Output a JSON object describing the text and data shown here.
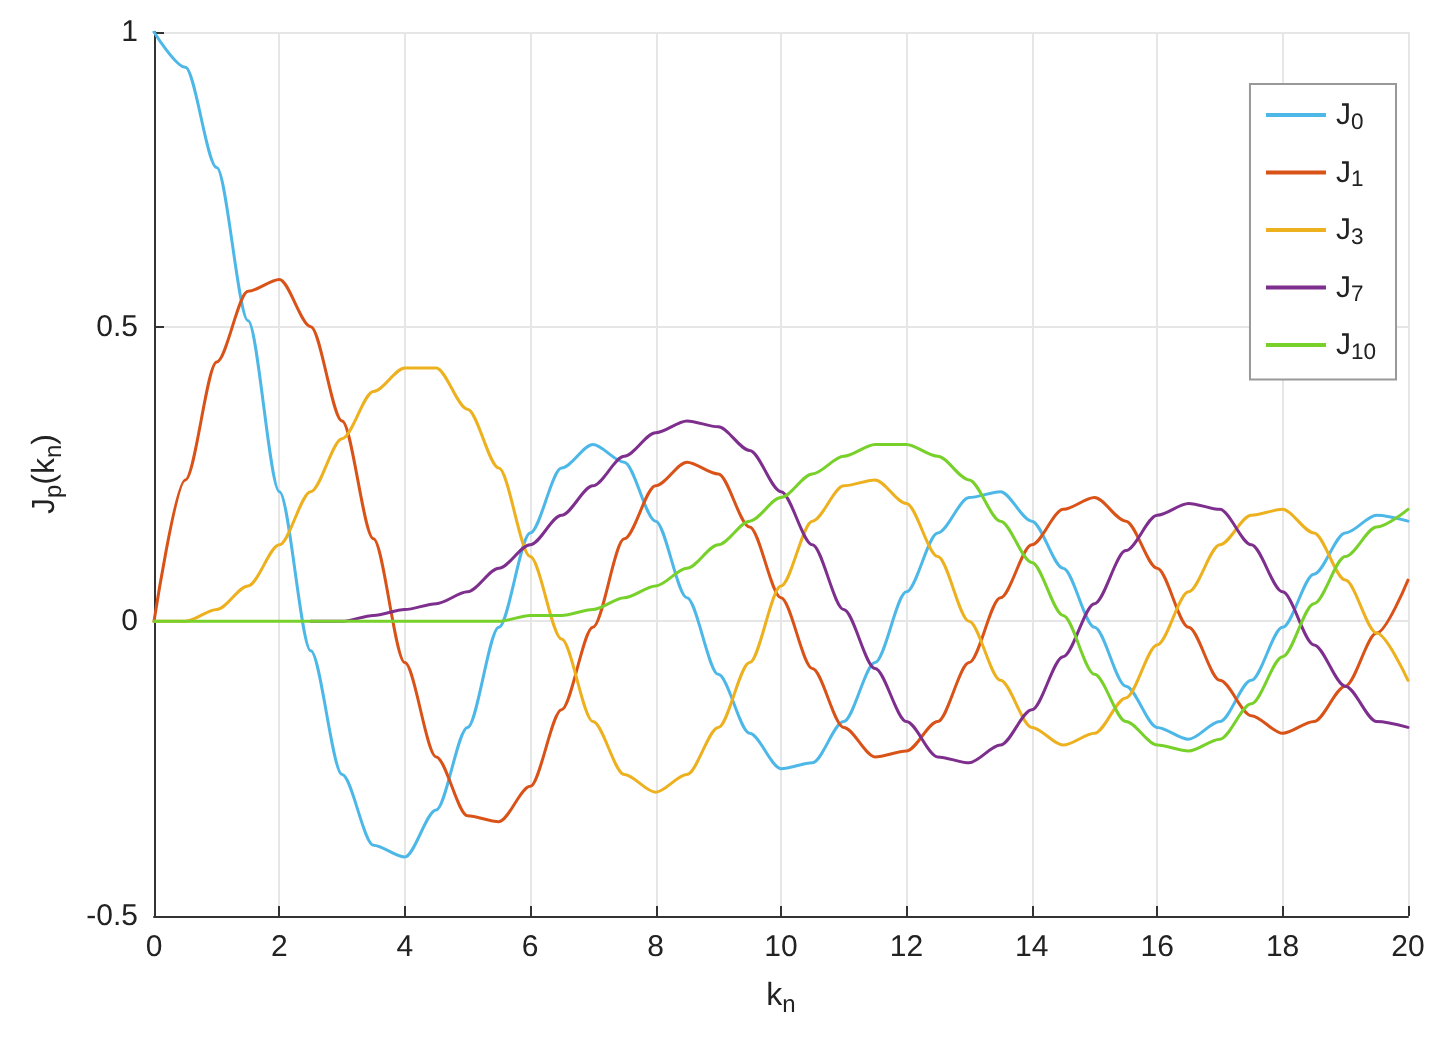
{
  "chart_data": {
    "type": "line",
    "xlabel": "k$_{n}$",
    "ylabel": "J$_{p}$(k$_{n}$)",
    "x": [
      0,
      0.5,
      1,
      1.5,
      2,
      2.5,
      3,
      3.5,
      4,
      4.5,
      5,
      5.5,
      6,
      6.5,
      7,
      7.5,
      8,
      8.5,
      9,
      9.5,
      10,
      10.5,
      11,
      11.5,
      12,
      12.5,
      13,
      13.5,
      14,
      14.5,
      15,
      15.5,
      16,
      16.5,
      17,
      17.5,
      18,
      18.5,
      19,
      19.5,
      20
    ],
    "series": [
      {
        "name": "J$_{0}$",
        "color": "#4db8e8",
        "values": [
          1,
          0.94,
          0.77,
          0.51,
          0.22,
          -0.05,
          -0.26,
          -0.38,
          -0.4,
          -0.32,
          -0.18,
          -0.01,
          0.15,
          0.26,
          0.3,
          0.27,
          0.17,
          0.04,
          -0.09,
          -0.19,
          -0.25,
          -0.24,
          -0.17,
          -0.07,
          0.05,
          0.15,
          0.21,
          0.22,
          0.17,
          0.09,
          -0.01,
          -0.11,
          -0.18,
          -0.2,
          -0.17,
          -0.1,
          -0.01,
          0.08,
          0.15,
          0.18,
          0.17
        ]
      },
      {
        "name": "J$_{1}$",
        "color": "#d95319",
        "values": [
          0,
          0.24,
          0.44,
          0.56,
          0.58,
          0.5,
          0.34,
          0.14,
          -0.07,
          -0.23,
          -0.33,
          -0.34,
          -0.28,
          -0.15,
          -0.01,
          0.14,
          0.23,
          0.27,
          0.25,
          0.16,
          0.04,
          -0.08,
          -0.18,
          -0.23,
          -0.22,
          -0.17,
          -0.07,
          0.04,
          0.13,
          0.19,
          0.21,
          0.17,
          0.09,
          -0.01,
          -0.1,
          -0.16,
          -0.19,
          -0.17,
          -0.11,
          -0.02,
          0.07
        ]
      },
      {
        "name": "J$_{3}$",
        "color": "#edb120",
        "values": [
          0,
          0,
          0.02,
          0.06,
          0.13,
          0.22,
          0.31,
          0.39,
          0.43,
          0.43,
          0.36,
          0.26,
          0.11,
          -0.03,
          -0.17,
          -0.26,
          -0.29,
          -0.26,
          -0.18,
          -0.07,
          0.06,
          0.17,
          0.23,
          0.24,
          0.2,
          0.11,
          0,
          -0.1,
          -0.18,
          -0.21,
          -0.19,
          -0.13,
          -0.04,
          0.05,
          0.13,
          0.18,
          0.19,
          0.15,
          0.07,
          -0.02,
          -0.1
        ]
      },
      {
        "name": "J$_{7}$",
        "color": "#7e2f8e",
        "values": [
          null,
          null,
          null,
          null,
          null,
          0,
          0,
          0.01,
          0.02,
          0.03,
          0.05,
          0.09,
          0.13,
          0.18,
          0.23,
          0.28,
          0.32,
          0.34,
          0.33,
          0.29,
          0.22,
          0.13,
          0.02,
          -0.08,
          -0.17,
          -0.23,
          -0.24,
          -0.21,
          -0.15,
          -0.06,
          0.03,
          0.12,
          0.18,
          0.2,
          0.19,
          0.13,
          0.05,
          -0.04,
          -0.11,
          -0.17,
          -0.18
        ]
      },
      {
        "name": "J$_{10}$",
        "color": "#77d12a",
        "values": [
          0,
          0,
          0,
          0,
          0,
          0,
          0,
          0,
          0,
          0,
          0,
          0,
          0.01,
          0.01,
          0.02,
          0.04,
          0.06,
          0.09,
          0.13,
          0.17,
          0.21,
          0.25,
          0.28,
          0.3,
          0.3,
          0.28,
          0.24,
          0.17,
          0.1,
          0.01,
          -0.09,
          -0.17,
          -0.21,
          -0.22,
          -0.2,
          -0.14,
          -0.06,
          0.03,
          0.11,
          0.16,
          0.19
        ]
      }
    ],
    "xlim": [
      0,
      20
    ],
    "xticks": [
      0,
      2,
      4,
      6,
      8,
      10,
      12,
      14,
      16,
      18,
      20
    ],
    "ylim": [
      -0.5,
      1
    ],
    "yticks": [
      -0.5,
      0,
      0.5,
      1
    ],
    "grid": true,
    "legend": "top right",
    "marker": "none",
    "line_style": "solid"
  }
}
